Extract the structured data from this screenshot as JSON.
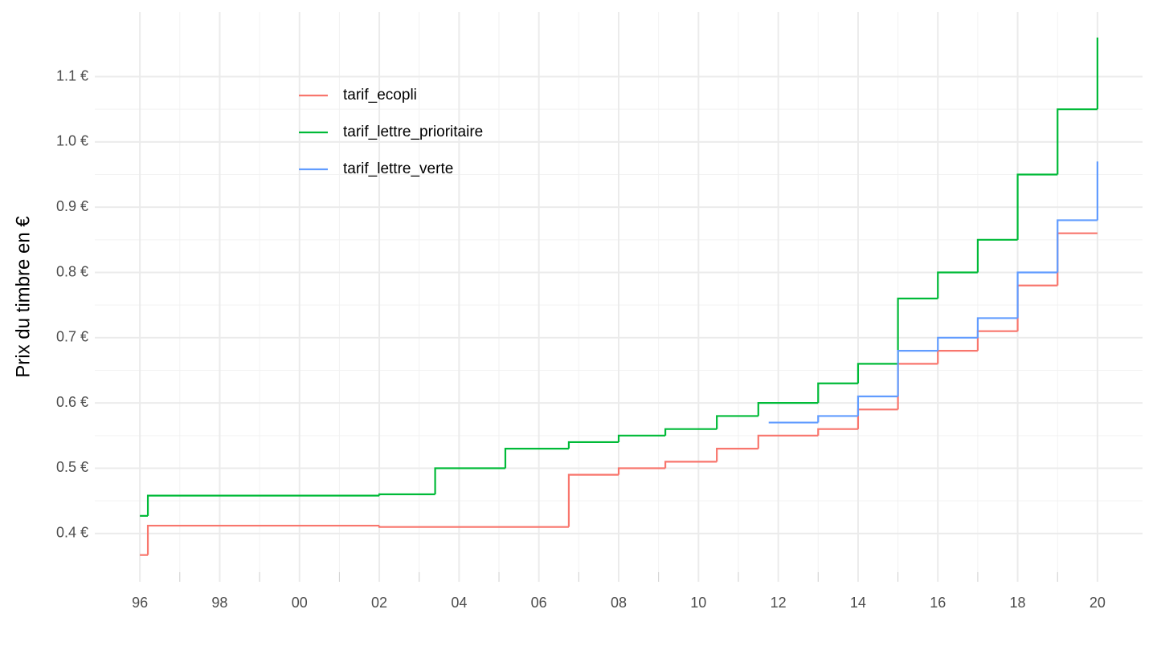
{
  "chart_data": {
    "type": "step",
    "y_label": "Prix du timbre en €",
    "xlim": [
      1994.87,
      2021.13
    ],
    "ylim": [
      0.326,
      1.199
    ],
    "xticks": [
      {
        "value": 1996,
        "label": "96"
      },
      {
        "value": 1998,
        "label": "98"
      },
      {
        "value": 2000,
        "label": "00"
      },
      {
        "value": 2002,
        "label": "02"
      },
      {
        "value": 2004,
        "label": "04"
      },
      {
        "value": 2006,
        "label": "06"
      },
      {
        "value": 2008,
        "label": "08"
      },
      {
        "value": 2010,
        "label": "10"
      },
      {
        "value": 2012,
        "label": "12"
      },
      {
        "value": 2014,
        "label": "14"
      },
      {
        "value": 2016,
        "label": "16"
      },
      {
        "value": 2018,
        "label": "18"
      },
      {
        "value": 2020,
        "label": "20"
      }
    ],
    "yticks": [
      {
        "value": 0.4,
        "label": "0.4 €"
      },
      {
        "value": 0.5,
        "label": "0.5 €"
      },
      {
        "value": 0.6,
        "label": "0.6 €"
      },
      {
        "value": 0.7,
        "label": "0.7 €"
      },
      {
        "value": 0.8,
        "label": "0.8 €"
      },
      {
        "value": 0.9,
        "label": "0.9 €"
      },
      {
        "value": 1.0,
        "label": "1.0 €"
      },
      {
        "value": 1.1,
        "label": "1.1 €"
      }
    ],
    "grid": true,
    "legend": "top-left",
    "series": [
      {
        "name": "tarif_ecopli",
        "color": "#f8766d",
        "x": [
          1996,
          1996.2,
          2002,
          2006.75,
          2008,
          2009.17,
          2010.46,
          2011.5,
          2013,
          2014,
          2015,
          2016,
          2017,
          2018,
          2019,
          2020
        ],
        "values": [
          0.367,
          0.412,
          0.41,
          0.49,
          0.5,
          0.51,
          0.53,
          0.55,
          0.56,
          0.59,
          0.66,
          0.68,
          0.71,
          0.78,
          0.86,
          0.86
        ]
      },
      {
        "name": "tarif_lettre_prioritaire",
        "color": "#00ba38",
        "x": [
          1996,
          1996.2,
          2002,
          2003.4,
          2005.16,
          2006.75,
          2008,
          2009.17,
          2010.46,
          2011.5,
          2013,
          2014,
          2015,
          2016,
          2017,
          2018,
          2019,
          2020
        ],
        "values": [
          0.427,
          0.458,
          0.46,
          0.5,
          0.53,
          0.54,
          0.55,
          0.56,
          0.58,
          0.6,
          0.63,
          0.66,
          0.76,
          0.8,
          0.85,
          0.95,
          1.05,
          1.16
        ]
      },
      {
        "name": "tarif_lettre_verte",
        "color": "#619cff",
        "x": [
          2011.76,
          2013,
          2014,
          2015,
          2016,
          2017,
          2018,
          2019,
          2020
        ],
        "values": [
          0.57,
          0.58,
          0.61,
          0.68,
          0.7,
          0.73,
          0.8,
          0.88,
          0.97
        ]
      }
    ]
  }
}
